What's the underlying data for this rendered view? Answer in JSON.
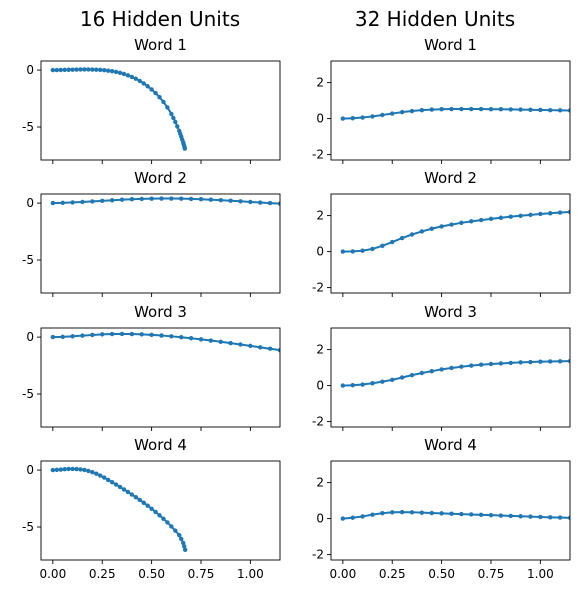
{
  "chart_data": {
    "type": "line",
    "columns": [
      {
        "title": "16 Hidden Units",
        "ylim": [
          -7.9,
          0.8
        ],
        "yticks": [
          0,
          -5
        ],
        "panels": [
          {
            "title": "Word 1",
            "x": [
              0,
              0.02,
              0.04,
              0.06,
              0.08,
              0.1,
              0.12,
              0.14,
              0.16,
              0.18,
              0.2,
              0.22,
              0.24,
              0.26,
              0.28,
              0.3,
              0.32,
              0.34,
              0.36,
              0.38,
              0.4,
              0.42,
              0.44,
              0.46,
              0.48,
              0.5,
              0.52,
              0.54,
              0.56,
              0.58,
              0.6,
              0.61,
              0.62,
              0.63,
              0.64,
              0.645,
              0.65,
              0.655,
              0.66,
              0.662,
              0.665,
              0.667,
              0.668
            ],
            "y": [
              0,
              0,
              0.01,
              0.02,
              0.03,
              0.04,
              0.05,
              0.06,
              0.06,
              0.06,
              0.05,
              0.04,
              0.02,
              -0.01,
              -0.05,
              -0.1,
              -0.16,
              -0.24,
              -0.34,
              -0.46,
              -0.6,
              -0.76,
              -0.95,
              -1.17,
              -1.42,
              -1.7,
              -2.02,
              -2.38,
              -2.8,
              -3.28,
              -3.85,
              -4.2,
              -4.55,
              -4.95,
              -5.35,
              -5.6,
              -5.85,
              -6.1,
              -6.35,
              -6.5,
              -6.65,
              -6.8,
              -6.9
            ]
          },
          {
            "title": "Word 2",
            "x": [
              0,
              0.05,
              0.1,
              0.15,
              0.2,
              0.25,
              0.3,
              0.35,
              0.4,
              0.45,
              0.5,
              0.55,
              0.6,
              0.65,
              0.7,
              0.75,
              0.8,
              0.85,
              0.9,
              0.95,
              1.0,
              1.05,
              1.1,
              1.15
            ],
            "y": [
              0,
              0.02,
              0.06,
              0.1,
              0.15,
              0.2,
              0.25,
              0.3,
              0.34,
              0.37,
              0.39,
              0.4,
              0.4,
              0.39,
              0.37,
              0.34,
              0.3,
              0.26,
              0.21,
              0.16,
              0.1,
              0.05,
              0,
              -0.05
            ]
          },
          {
            "title": "Word 3",
            "x": [
              0,
              0.05,
              0.1,
              0.15,
              0.2,
              0.25,
              0.3,
              0.35,
              0.4,
              0.45,
              0.5,
              0.55,
              0.6,
              0.65,
              0.7,
              0.75,
              0.8,
              0.85,
              0.9,
              0.95,
              1.0,
              1.05,
              1.1,
              1.15
            ],
            "y": [
              0,
              0.02,
              0.07,
              0.13,
              0.19,
              0.24,
              0.27,
              0.28,
              0.27,
              0.24,
              0.2,
              0.14,
              0.07,
              -0.01,
              -0.1,
              -0.2,
              -0.3,
              -0.41,
              -0.53,
              -0.65,
              -0.77,
              -0.9,
              -1.02,
              -1.15
            ]
          },
          {
            "title": "Word 4",
            "x": [
              0,
              0.02,
              0.04,
              0.06,
              0.08,
              0.1,
              0.12,
              0.14,
              0.16,
              0.18,
              0.2,
              0.22,
              0.24,
              0.26,
              0.28,
              0.3,
              0.32,
              0.34,
              0.36,
              0.38,
              0.4,
              0.42,
              0.44,
              0.46,
              0.48,
              0.5,
              0.52,
              0.54,
              0.56,
              0.58,
              0.6,
              0.62,
              0.64,
              0.65,
              0.66,
              0.665,
              0.67
            ],
            "y": [
              0,
              0.02,
              0.05,
              0.08,
              0.1,
              0.1,
              0.09,
              0.06,
              0.01,
              -0.07,
              -0.18,
              -0.32,
              -0.48,
              -0.66,
              -0.86,
              -1.06,
              -1.27,
              -1.48,
              -1.7,
              -1.92,
              -2.15,
              -2.38,
              -2.62,
              -2.87,
              -3.13,
              -3.4,
              -3.68,
              -3.97,
              -4.28,
              -4.6,
              -4.95,
              -5.32,
              -5.72,
              -6.05,
              -6.4,
              -6.7,
              -7.0
            ]
          }
        ]
      },
      {
        "title": "32 Hidden Units",
        "ylim": [
          -2.3,
          3.2
        ],
        "yticks": [
          2,
          0,
          -2
        ],
        "panels": [
          {
            "title": "Word 1",
            "x": [
              0,
              0.05,
              0.1,
              0.15,
              0.2,
              0.25,
              0.3,
              0.35,
              0.4,
              0.45,
              0.5,
              0.55,
              0.6,
              0.65,
              0.7,
              0.75,
              0.8,
              0.85,
              0.9,
              0.95,
              1.0,
              1.05,
              1.1,
              1.15
            ],
            "y": [
              0,
              0.02,
              0.06,
              0.12,
              0.2,
              0.28,
              0.36,
              0.42,
              0.47,
              0.5,
              0.52,
              0.53,
              0.53,
              0.53,
              0.53,
              0.52,
              0.52,
              0.51,
              0.5,
              0.49,
              0.48,
              0.47,
              0.46,
              0.45
            ]
          },
          {
            "title": "Word 2",
            "x": [
              0,
              0.05,
              0.1,
              0.15,
              0.2,
              0.25,
              0.3,
              0.35,
              0.4,
              0.45,
              0.5,
              0.55,
              0.6,
              0.65,
              0.7,
              0.75,
              0.8,
              0.85,
              0.9,
              0.95,
              1.0,
              1.05,
              1.1,
              1.15
            ],
            "y": [
              0,
              0.01,
              0.05,
              0.15,
              0.32,
              0.53,
              0.75,
              0.95,
              1.12,
              1.27,
              1.4,
              1.5,
              1.6,
              1.68,
              1.75,
              1.82,
              1.88,
              1.94,
              1.99,
              2.04,
              2.09,
              2.13,
              2.17,
              2.2
            ]
          },
          {
            "title": "Word 3",
            "x": [
              0,
              0.05,
              0.1,
              0.15,
              0.2,
              0.25,
              0.3,
              0.35,
              0.4,
              0.45,
              0.5,
              0.55,
              0.6,
              0.65,
              0.7,
              0.75,
              0.8,
              0.85,
              0.9,
              0.95,
              1.0,
              1.05,
              1.1,
              1.15
            ],
            "y": [
              0,
              0.02,
              0.06,
              0.13,
              0.22,
              0.32,
              0.45,
              0.58,
              0.7,
              0.8,
              0.9,
              0.98,
              1.05,
              1.11,
              1.16,
              1.2,
              1.23,
              1.26,
              1.29,
              1.31,
              1.33,
              1.34,
              1.35,
              1.36
            ]
          },
          {
            "title": "Word 4",
            "x": [
              0,
              0.05,
              0.1,
              0.15,
              0.2,
              0.25,
              0.3,
              0.35,
              0.4,
              0.45,
              0.5,
              0.55,
              0.6,
              0.65,
              0.7,
              0.75,
              0.8,
              0.85,
              0.9,
              0.95,
              1.0,
              1.05,
              1.1,
              1.15
            ],
            "y": [
              0,
              0.05,
              0.12,
              0.22,
              0.3,
              0.35,
              0.36,
              0.35,
              0.33,
              0.31,
              0.29,
              0.27,
              0.25,
              0.23,
              0.21,
              0.19,
              0.17,
              0.15,
              0.13,
              0.11,
              0.09,
              0.07,
              0.06,
              0.04
            ]
          }
        ]
      }
    ],
    "xlim": [
      -0.06,
      1.15
    ],
    "xticks": [
      0,
      0.25,
      0.5,
      0.75,
      1.0
    ],
    "xtick_labels": [
      "0.00",
      "0.25",
      "0.50",
      "0.75",
      "1.00"
    ],
    "grid": false,
    "legend": false
  }
}
